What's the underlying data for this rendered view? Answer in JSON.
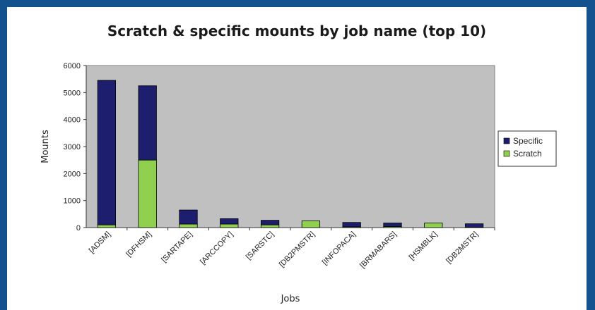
{
  "chart_data": {
    "type": "bar",
    "stacked": true,
    "title": "Scratch & specific mounts by job name (top 10)",
    "xlabel": "Jobs",
    "ylabel": "Mounts",
    "ylim": [
      0,
      6000
    ],
    "yticks": [
      0,
      1000,
      2000,
      3000,
      4000,
      5000,
      6000
    ],
    "grid": false,
    "legend_position": "right",
    "categories": [
      "[ADSM]",
      "[DFHSM]",
      "[SARTAPE]",
      "[ARCCOPY]",
      "[SARSTC]",
      "[DB2PMSTR]",
      "[INFOPACA]",
      "[BRMABARS]",
      "[HSMBLK]",
      "[DB2MSTR]"
    ],
    "series": [
      {
        "name": "Scratch",
        "color": "#8fd14f",
        "values": [
          100,
          2500,
          130,
          130,
          100,
          250,
          30,
          40,
          170,
          10
        ]
      },
      {
        "name": "Specific",
        "color": "#1d1f6e",
        "values": [
          5350,
          2750,
          520,
          200,
          170,
          0,
          160,
          130,
          0,
          130
        ]
      }
    ],
    "legend_order": [
      "Specific",
      "Scratch"
    ],
    "plot_background": "#c0c0c0"
  }
}
